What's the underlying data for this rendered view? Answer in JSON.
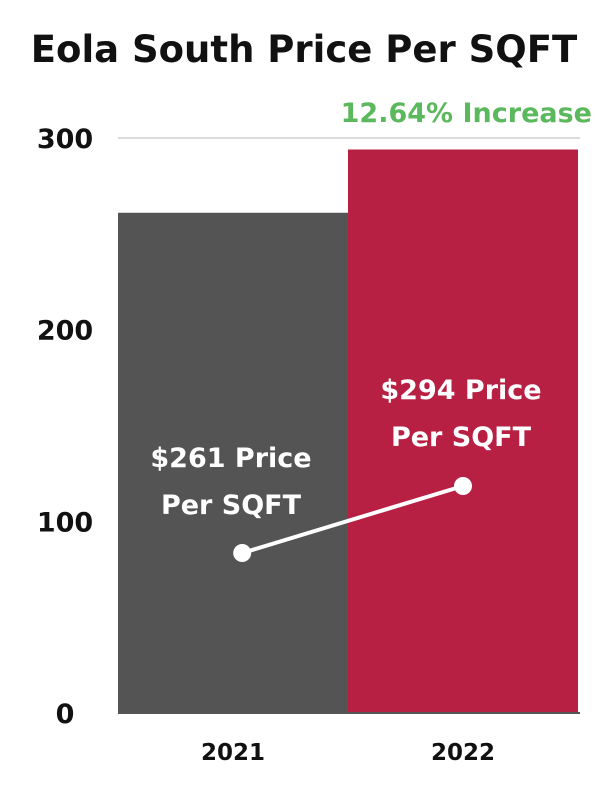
{
  "chart_data": {
    "type": "bar",
    "title": "Eola South Price Per SQFT",
    "annotation": "12.64% Increase",
    "categories": [
      "2021",
      "2022"
    ],
    "values": [
      261,
      294
    ],
    "colors": [
      "#545454",
      "#b82043"
    ],
    "annotation_color": "#5cb85c",
    "bar_labels": [
      [
        "$261 Price",
        "Per SQFT"
      ],
      [
        "$294 Price",
        "Per SQFT"
      ]
    ],
    "yticks": [
      0,
      100,
      200,
      300
    ],
    "ylim": [
      0,
      300
    ],
    "grid": false
  }
}
